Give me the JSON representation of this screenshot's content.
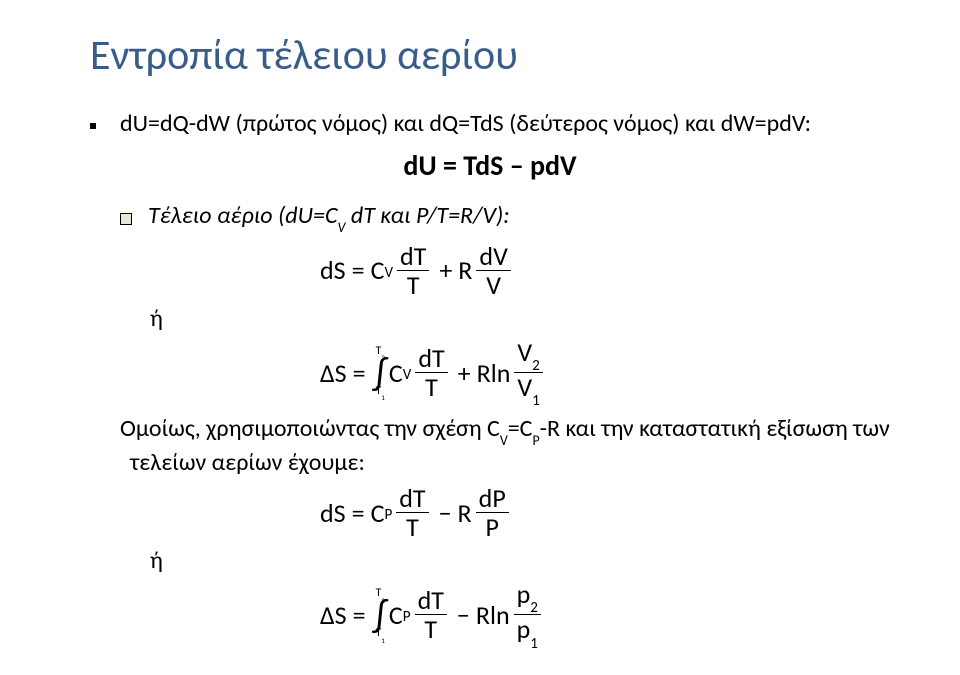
{
  "title": "Εντροπία τέλειου αερίου",
  "bullet1": "dU=dQ-dW (πρώτος νόμος) και dQ=TdS (δεύτερος νόμος) και dW=pdV:",
  "center_eq": "dU = TdS – pdV",
  "bullet2_prefix": "Τέλειο αέριο (dU=C",
  "bullet2_sub": "V",
  "bullet2_suffix": " dT και P/T=R/V):",
  "or_label": "ή",
  "eq1": {
    "lhs": "dS",
    "eq": "=",
    "c": "C",
    "csub": "V",
    "f1num": "dT",
    "f1den": "T",
    "plus": "+",
    "r": "R",
    "f2num": "dV",
    "f2den": "V"
  },
  "eq2": {
    "lhs": "ΔS",
    "eq": "=",
    "int_up": "T",
    "int_up_sub": "2",
    "int_lo": "T",
    "int_lo_sub": "1",
    "c": "C",
    "csub": "V",
    "f1num": "dT",
    "f1den": "T",
    "plus": "+",
    "rln": "Rln",
    "f2num": "V",
    "f2numsub": "2",
    "f2den": "V",
    "f2densub": "1"
  },
  "body_prefix": "Ομοίως, χρησιμοποιώντας την σχέση C",
  "body_sub1": "V",
  "body_mid": "=C",
  "body_sub2": "P",
  "body_suffix": "-R και την καταστατική εξίσωση των",
  "body_line2": "τελείων αερίων έχουμε:",
  "eq3": {
    "lhs": "dS",
    "eq": "=",
    "c": "C",
    "csub": "P",
    "f1num": "dT",
    "f1den": "T",
    "minus": "−",
    "r": "R",
    "f2num": "dP",
    "f2den": "P"
  },
  "eq4": {
    "lhs": "ΔS",
    "eq": "=",
    "int_up": "T",
    "int_up_sub": "2",
    "int_lo": "T",
    "int_lo_sub": "1",
    "c": "C",
    "csub": "P",
    "f1num": "dT",
    "f1den": "T",
    "minus": "−",
    "rln": "Rln",
    "f2num": "p",
    "f2numsub": "2",
    "f2den": "p",
    "f2densub": "1"
  },
  "colors": {
    "title": "#385d8a",
    "text": "#000000",
    "background": "#ffffff"
  },
  "fonts": {
    "title_size": 42,
    "body_size": 24,
    "eq_size": 26
  }
}
